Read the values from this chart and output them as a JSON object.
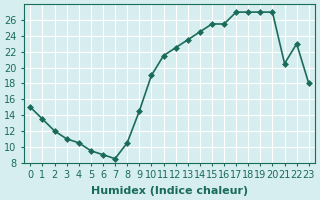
{
  "x": [
    0,
    1,
    2,
    3,
    4,
    5,
    6,
    7,
    8,
    9,
    10,
    11,
    12,
    13,
    14,
    15,
    16,
    17,
    18,
    19,
    20,
    21,
    22,
    23
  ],
  "y": [
    15,
    13.5,
    12,
    11,
    10.5,
    9.5,
    9,
    8.5,
    10.5,
    14.5,
    19,
    21.5,
    22.5,
    23.5,
    24.5,
    25.5,
    25.5,
    27,
    27,
    27,
    27,
    20.5,
    23,
    18
  ],
  "line_color": "#1a6b5a",
  "marker": "D",
  "marker_size": 3,
  "bg_color": "#d6eef0",
  "grid_color": "#ffffff",
  "xlabel": "Humidex (Indice chaleur)",
  "ylim": [
    8,
    28
  ],
  "xlim": [
    -0.5,
    23.5
  ],
  "yticks": [
    8,
    10,
    12,
    14,
    16,
    18,
    20,
    22,
    24,
    26
  ],
  "xticks": [
    0,
    1,
    2,
    3,
    4,
    5,
    6,
    7,
    8,
    9,
    10,
    11,
    12,
    13,
    14,
    15,
    16,
    17,
    18,
    19,
    20,
    21,
    22,
    23
  ],
  "xlabel_fontsize": 8,
  "tick_fontsize": 7,
  "line_width": 1.2
}
